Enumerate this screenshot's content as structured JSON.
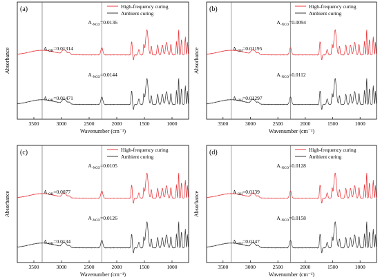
{
  "figure": {
    "colors": {
      "high": "#e8383d",
      "ambient": "#3a3a3a",
      "ref_line": "#555555"
    },
    "chart_data": [
      {
        "type": "line",
        "panel_label": "(a)",
        "xlabel": "Wavenumber (cm⁻¹)",
        "ylabel": "Absorbance",
        "xlim": [
          3800,
          700
        ],
        "x_reversed": true,
        "xticks": [
          3500,
          3000,
          2500,
          2000,
          1500,
          1000
        ],
        "reference_lines_x": [
          3350,
          2270
        ],
        "legend": {
          "position": "top-right",
          "entries": [
            "High-frequency curing",
            "Ambient curing"
          ]
        },
        "series": [
          {
            "name": "High-frequency curing",
            "color": "#e8383d",
            "offset": 0.5,
            "annotations": [
              {
                "label": "OH",
                "value": "0.01314",
                "x": 3350
              },
              {
                "label": "NCO",
                "value": "0.0136",
                "x": 2270
              }
            ]
          },
          {
            "name": "Ambient curing",
            "color": "#3a3a3a",
            "offset": 0.0,
            "annotations": [
              {
                "label": "OH",
                "value": "0.01471",
                "x": 3350
              },
              {
                "label": "NCO",
                "value": "0.0144",
                "x": 2270
              }
            ]
          }
        ]
      },
      {
        "type": "line",
        "panel_label": "(b)",
        "xlabel": "Wavenumber (cm⁻¹)",
        "ylabel": "Absorbance",
        "xlim": [
          3800,
          700
        ],
        "x_reversed": true,
        "xticks": [
          3500,
          3000,
          2500,
          2000,
          1500,
          1000
        ],
        "reference_lines_x": [
          3350,
          2270
        ],
        "legend": {
          "position": "top-right",
          "entries": [
            "High-frequency curing",
            "Ambient curing"
          ]
        },
        "series": [
          {
            "name": "High-frequency curing",
            "color": "#e8383d",
            "offset": 0.5,
            "annotations": [
              {
                "label": "OH",
                "value": "0.01195",
                "x": 3350
              },
              {
                "label": "NCO",
                "value": "0.0094",
                "x": 2270
              }
            ]
          },
          {
            "name": "Ambient curing",
            "color": "#3a3a3a",
            "offset": 0.0,
            "annotations": [
              {
                "label": "OH",
                "value": "0.01297",
                "x": 3350
              },
              {
                "label": "NCO",
                "value": "0.0112",
                "x": 2270
              }
            ]
          }
        ]
      },
      {
        "type": "line",
        "panel_label": "(c)",
        "xlabel": "Wavenumber (cm⁻¹)",
        "ylabel": "Absorbance",
        "xlim": [
          3800,
          700
        ],
        "x_reversed": true,
        "xticks": [
          3500,
          3000,
          2500,
          2000,
          1500,
          1000
        ],
        "reference_lines_x": [
          3350,
          2270
        ],
        "legend": {
          "position": "top-right",
          "entries": [
            "High-frequency curing",
            "Ambient curing"
          ]
        },
        "series": [
          {
            "name": "High-frequency curing",
            "color": "#e8383d",
            "offset": 0.5,
            "annotations": [
              {
                "label": "OH",
                "value": "0.0077",
                "x": 3350
              },
              {
                "label": "NCO",
                "value": "0.0105",
                "x": 2270
              }
            ]
          },
          {
            "name": "Ambient curing",
            "color": "#3a3a3a",
            "offset": 0.0,
            "annotations": [
              {
                "label": "OH",
                "value": "0.0134",
                "x": 3350
              },
              {
                "label": "NCO",
                "value": "0.0126",
                "x": 2270
              }
            ]
          }
        ]
      },
      {
        "type": "line",
        "panel_label": "(d)",
        "xlabel": "Wavenumber (cm⁻¹)",
        "ylabel": "Absorbance",
        "xlim": [
          3800,
          700
        ],
        "x_reversed": true,
        "xticks": [
          3500,
          3000,
          2500,
          2000,
          1500,
          1000
        ],
        "reference_lines_x": [
          3350,
          2270
        ],
        "legend": {
          "position": "top-right",
          "entries": [
            "High-frequency curing",
            "Ambient curing"
          ]
        },
        "series": [
          {
            "name": "High-frequency curing",
            "color": "#e8383d",
            "offset": 0.5,
            "annotations": [
              {
                "label": "OH",
                "value": "0.0139",
                "x": 3350
              },
              {
                "label": "NCO",
                "value": "0.0128",
                "x": 2270
              }
            ]
          },
          {
            "name": "Ambient curing",
            "color": "#3a3a3a",
            "offset": 0.0,
            "annotations": [
              {
                "label": "OH",
                "value": "0.0147",
                "x": 3350
              },
              {
                "label": "NCO",
                "value": "0.0158",
                "x": 2270
              }
            ]
          }
        ]
      }
    ]
  }
}
